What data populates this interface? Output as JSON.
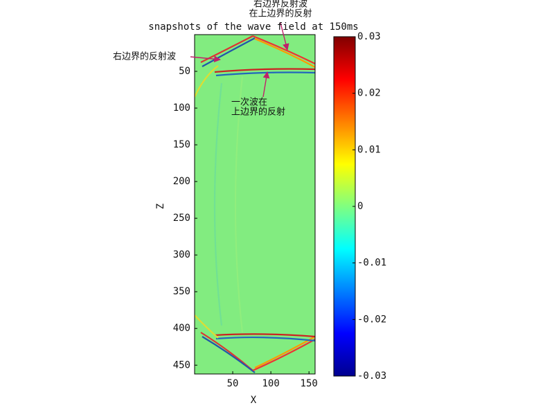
{
  "chart_data": {
    "type": "heatmap",
    "title": "snapshots of the wave field at 150ms",
    "x_label": "X",
    "y_label": "Z",
    "xlim": [
      0,
      158
    ],
    "ylim": [
      0,
      462
    ],
    "xticks": [
      50,
      100,
      150
    ],
    "yticks": [
      50,
      100,
      150,
      200,
      250,
      300,
      350,
      400,
      450
    ],
    "colorbar": {
      "clim": [
        -0.03,
        0.03
      ],
      "ticks": [
        0.03,
        0.02,
        0.01,
        0,
        -0.01,
        -0.02,
        -0.03
      ]
    },
    "annotations": [
      {
        "lines": [
          "右边界反射波",
          "在上边界的反射"
        ]
      },
      {
        "lines": [
          "右边界的反射波"
        ]
      },
      {
        "lines": [
          "一次波在",
          "上边界的反射"
        ]
      }
    ]
  }
}
